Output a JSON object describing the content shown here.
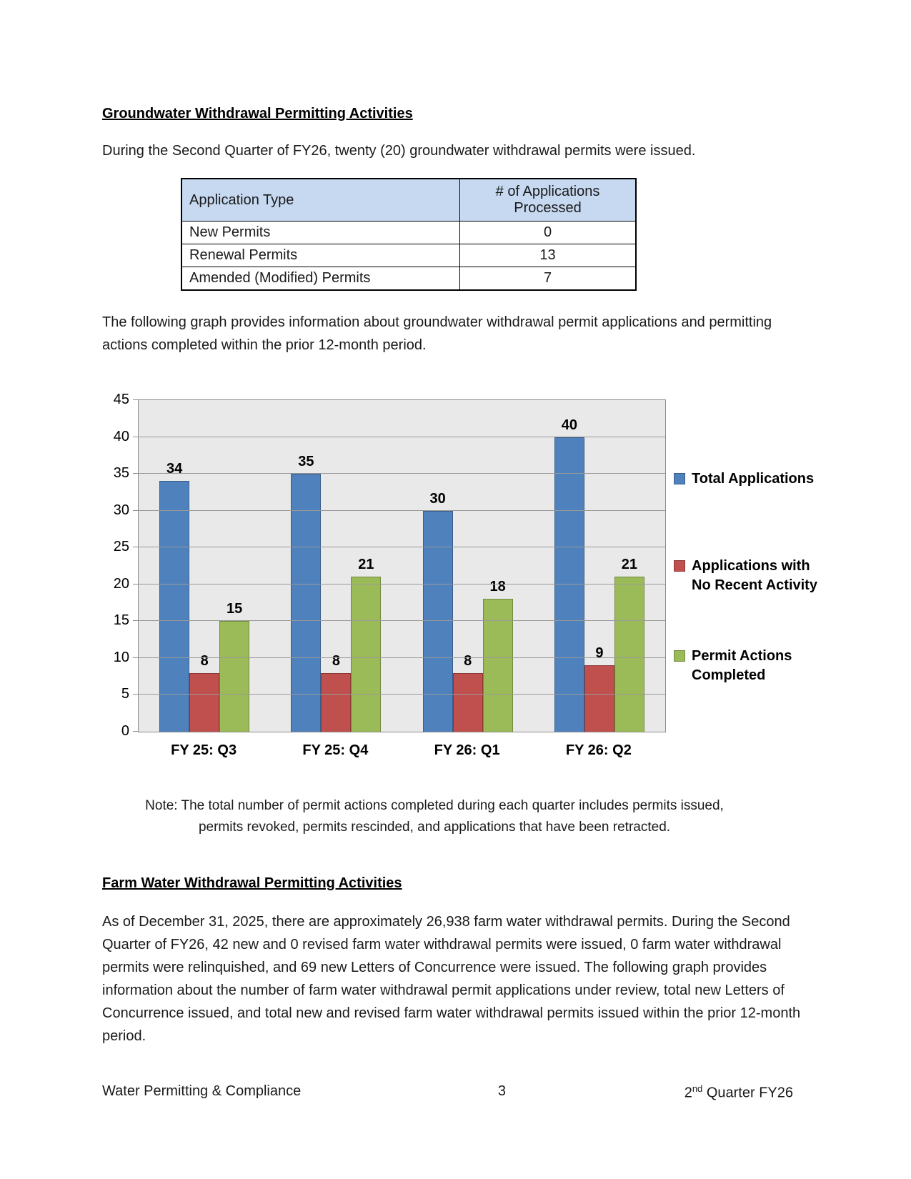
{
  "section1": {
    "heading": "Groundwater Withdrawal Permitting Activities",
    "intro": "During the Second Quarter of FY26, twenty (20) groundwater withdrawal permits were issued.",
    "table": {
      "headers": [
        "Application Type",
        "# of Applications Processed"
      ],
      "rows": [
        [
          "New Permits",
          "0"
        ],
        [
          "Renewal Permits",
          "13"
        ],
        [
          "Amended (Modified) Permits",
          "7"
        ]
      ]
    },
    "graph_intro": "The following graph provides information about groundwater withdrawal permit applications and permitting actions completed within the prior 12-month period.",
    "note_line1": "Note: The total number of permit actions completed during each quarter includes permits issued,",
    "note_line2": "permits revoked, permits rescinded, and applications that have been retracted."
  },
  "chart_data": {
    "type": "bar",
    "categories": [
      "FY 25: Q3",
      "FY 25: Q4",
      "FY 26: Q1",
      "FY 26: Q2"
    ],
    "series": [
      {
        "name": "Total Applications",
        "color": "#4F81BD",
        "border": "#385D8A",
        "values": [
          34,
          35,
          30,
          40
        ]
      },
      {
        "name": "Applications with No Recent Activity",
        "color": "#C0504D",
        "border": "#8C3836",
        "values": [
          8,
          8,
          8,
          9
        ]
      },
      {
        "name": "Permit Actions Completed",
        "color": "#9BBB59",
        "border": "#71893F",
        "values": [
          15,
          21,
          18,
          21
        ]
      }
    ],
    "data_labels": true,
    "title": "",
    "xlabel": "",
    "ylabel": "",
    "ylim": [
      0,
      45
    ],
    "yticks": [
      0,
      5,
      10,
      15,
      20,
      25,
      30,
      35,
      40,
      45
    ],
    "grid": true,
    "legend_position": "right",
    "plot_bg": "#E9E9E9",
    "gridline_color": "#999999"
  },
  "section2": {
    "heading": "Farm Water Withdrawal Permitting Activities",
    "body": "As of December 31, 2025, there are approximately 26,938 farm water withdrawal permits.  During the Second Quarter of FY26, 42 new and 0 revised farm water withdrawal permits were issued, 0 farm water withdrawal permits were relinquished, and 69 new Letters of Concurrence were issued.  The following graph provides information about the number of farm water withdrawal permit applications under review, total new Letters of Concurrence issued, and total new and revised farm water withdrawal permits issued within the prior 12-month period."
  },
  "footer": {
    "left": "Water Permitting & Compliance",
    "page_number": "3",
    "right_num": "2",
    "right_sup": "nd",
    "right_rest": " Quarter FY26"
  }
}
